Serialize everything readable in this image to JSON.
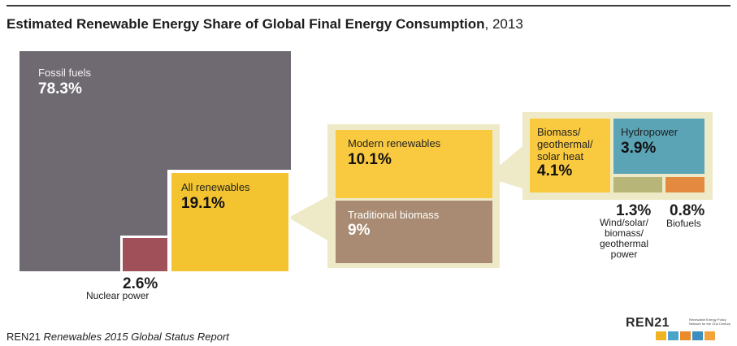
{
  "title": {
    "main": "Estimated Renewable Energy Share of Global Final Energy Consumption",
    "year": ", 2013"
  },
  "footer": {
    "source": "REN21",
    "report": "Renewables 2015 Global Status Report"
  },
  "logo": {
    "name": "REN21",
    "tagline": "Renewable Energy Policy Network for the 21st Century"
  },
  "colors": {
    "fossil": "#6f6a72",
    "nuclear": "#a05058",
    "renewables": "#f3c430",
    "modern": "#f9c93f",
    "traditional": "#a88b72",
    "biomass_heat": "#f9c93f",
    "hydro": "#5aa4b5",
    "wind": "#b7b577",
    "biofuels": "#e48a40",
    "panel": "#eeeac7"
  },
  "chart_data": {
    "type": "treemap",
    "title": "Estimated Renewable Energy Share of Global Final Energy Consumption, 2013",
    "unit": "%",
    "segments": [
      {
        "key": "fossil",
        "label": "Fossil fuels",
        "value": 78.3,
        "display": "78.3%"
      },
      {
        "key": "nuclear",
        "label": "Nuclear power",
        "value": 2.6,
        "display": "2.6%"
      },
      {
        "key": "renewables",
        "label": "All renewables",
        "value": 19.1,
        "display": "19.1%",
        "children": [
          {
            "key": "modern",
            "label": "Modern renewables",
            "value": 10.1,
            "display": "10.1%",
            "children": [
              {
                "key": "biomass_heat",
                "label": "Biomass/ geothermal/ solar heat",
                "value": 4.1,
                "display": "4.1%"
              },
              {
                "key": "hydro",
                "label": "Hydropower",
                "value": 3.9,
                "display": "3.9%"
              },
              {
                "key": "wind",
                "label": "Wind/solar/ biomass/ geothermal power",
                "value": 1.3,
                "display": "1.3%"
              },
              {
                "key": "biofuels",
                "label": "Biofuels",
                "value": 0.8,
                "display": "0.8%"
              }
            ]
          },
          {
            "key": "traditional",
            "label": "Traditional biomass",
            "value": 9,
            "display": "9%"
          }
        ]
      }
    ]
  }
}
